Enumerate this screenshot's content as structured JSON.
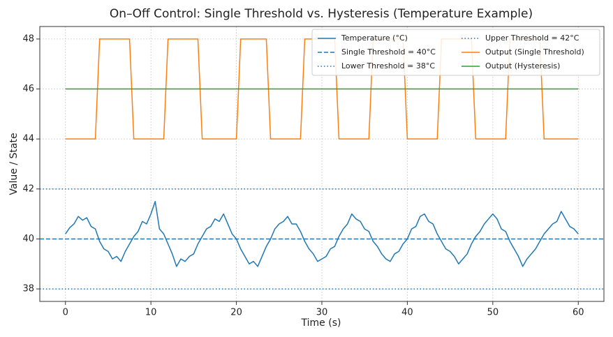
{
  "chart_data": {
    "type": "line",
    "title": "On–Off Control: Single Threshold vs. Hysteresis (Temperature Example)",
    "xlabel": "Time (s)",
    "ylabel": "Value / State",
    "xlim": [
      -3,
      63
    ],
    "ylim": [
      37.5,
      48.5
    ],
    "xticks": [
      0,
      10,
      20,
      30,
      40,
      50,
      60
    ],
    "yticks": [
      38,
      40,
      42,
      44,
      46,
      48
    ],
    "grid": true,
    "legend": "upper right",
    "x": [
      0,
      0.5,
      1,
      1.5,
      2,
      2.5,
      3,
      3.5,
      4,
      4.5,
      5,
      5.5,
      6,
      6.5,
      7,
      7.5,
      8,
      8.5,
      9,
      9.5,
      10,
      10.5,
      11,
      11.5,
      12,
      12.5,
      13,
      13.5,
      14,
      14.5,
      15,
      15.5,
      16,
      16.5,
      17,
      17.5,
      18,
      18.5,
      19,
      19.5,
      20,
      20.5,
      21,
      21.5,
      22,
      22.5,
      23,
      23.5,
      24,
      24.5,
      25,
      25.5,
      26,
      26.5,
      27,
      27.5,
      28,
      28.5,
      29,
      29.5,
      30,
      30.5,
      31,
      31.5,
      32,
      32.5,
      33,
      33.5,
      34,
      34.5,
      35,
      35.5,
      36,
      36.5,
      37,
      37.5,
      38,
      38.5,
      39,
      39.5,
      40,
      40.5,
      41,
      41.5,
      42,
      42.5,
      43,
      43.5,
      44,
      44.5,
      45,
      45.5,
      46,
      46.5,
      47,
      47.5,
      48,
      48.5,
      49,
      49.5,
      50,
      50.5,
      51,
      51.5,
      52,
      52.5,
      53,
      53.5,
      54,
      54.5,
      55,
      55.5,
      56,
      56.5,
      57,
      57.5,
      58,
      58.5,
      59,
      59.5,
      60
    ],
    "series": [
      {
        "name": "Temperature (°C)",
        "color": "#1f77b4",
        "values": [
          40.2,
          40.45,
          40.6,
          40.9,
          40.75,
          40.85,
          40.5,
          40.4,
          39.9,
          39.6,
          39.5,
          39.2,
          39.3,
          39.1,
          39.5,
          39.8,
          40.1,
          40.3,
          40.7,
          40.6,
          41.0,
          41.5,
          40.4,
          40.2,
          39.8,
          39.4,
          38.9,
          39.2,
          39.1,
          39.3,
          39.4,
          39.8,
          40.1,
          40.4,
          40.5,
          40.8,
          40.7,
          41.0,
          40.6,
          40.2,
          40.0,
          39.6,
          39.3,
          39.0,
          39.1,
          38.9,
          39.3,
          39.7,
          40.0,
          40.4,
          40.6,
          40.7,
          40.9,
          40.6,
          40.6,
          40.3,
          39.9,
          39.6,
          39.4,
          39.1,
          39.2,
          39.3,
          39.6,
          39.7,
          40.1,
          40.4,
          40.6,
          41.0,
          40.8,
          40.7,
          40.4,
          40.3,
          39.9,
          39.7,
          39.4,
          39.2,
          39.1,
          39.4,
          39.5,
          39.8,
          40.0,
          40.4,
          40.5,
          40.9,
          41.0,
          40.7,
          40.6,
          40.2,
          39.9,
          39.6,
          39.5,
          39.3,
          39.0,
          39.2,
          39.4,
          39.8,
          40.1,
          40.3,
          40.6,
          40.8,
          41.0,
          40.8,
          40.4,
          40.3,
          39.9,
          39.6,
          39.3,
          38.9,
          39.2,
          39.4,
          39.6,
          39.9,
          40.2,
          40.4,
          40.6,
          40.7,
          41.1,
          40.8,
          40.5,
          40.4,
          40.2
        ]
      },
      {
        "name": "Single Threshold = 40°C",
        "color": "#1f77b4",
        "y": 40,
        "linestyle": "dashed"
      },
      {
        "name": "Lower Threshold = 38°C",
        "color": "#1f77b4",
        "y": 38,
        "linestyle": "dotted"
      },
      {
        "name": "Upper Threshold = 42°C",
        "color": "#1f77b4",
        "y": 42,
        "linestyle": "dotted"
      },
      {
        "name": "Output (Single Threshold)",
        "color": "#ff7f0e",
        "values": [
          44,
          44,
          44,
          44,
          44,
          44,
          44,
          44,
          48,
          48,
          48,
          48,
          48,
          48,
          48,
          48,
          44,
          44,
          44,
          44,
          44,
          44,
          44,
          44,
          48,
          48,
          48,
          48,
          48,
          48,
          48,
          48,
          44,
          44,
          44,
          44,
          44,
          44,
          44,
          44,
          44,
          48,
          48,
          48,
          48,
          48,
          48,
          48,
          44,
          44,
          44,
          44,
          44,
          44,
          44,
          44,
          48,
          48,
          48,
          48,
          48,
          48,
          48,
          48,
          44,
          44,
          44,
          44,
          44,
          44,
          44,
          44,
          48,
          48,
          48,
          48,
          48,
          48,
          48,
          48,
          44,
          44,
          44,
          44,
          44,
          44,
          44,
          44,
          48,
          48,
          48,
          48,
          48,
          48,
          48,
          48,
          44,
          44,
          44,
          44,
          44,
          44,
          44,
          44,
          48,
          48,
          48,
          48,
          48,
          48,
          48,
          48,
          44,
          44,
          44,
          44,
          44,
          44,
          44,
          44,
          44
        ]
      },
      {
        "name": "Output (Hysteresis)",
        "color": "#2ca02c",
        "x": [
          0,
          60
        ],
        "values": [
          46,
          46
        ]
      }
    ]
  }
}
